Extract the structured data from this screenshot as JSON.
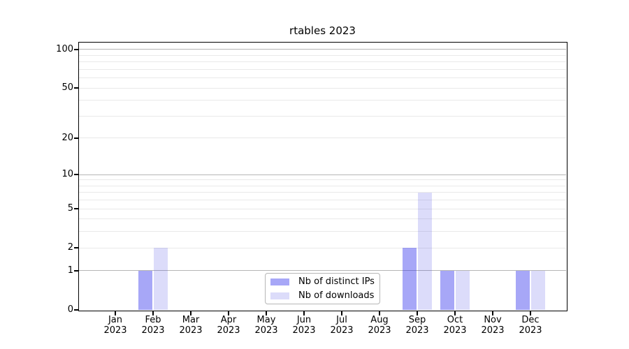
{
  "chart_data": {
    "type": "bar",
    "title": "rtables 2023",
    "categories": [
      "Jan",
      "Feb",
      "Mar",
      "Apr",
      "May",
      "Jun",
      "Jul",
      "Aug",
      "Sep",
      "Oct",
      "Nov",
      "Dec"
    ],
    "x_tick_second_line": "2023",
    "series": [
      {
        "name": "Nb of distinct IPs",
        "color": "rgba(45,45,235,0.42)",
        "values": [
          0,
          1,
          0,
          0,
          0,
          0,
          0,
          0,
          2,
          1,
          0,
          1
        ]
      },
      {
        "name": "Nb of downloads",
        "color": "rgba(70,70,230,0.19)",
        "values": [
          0,
          2,
          0,
          0,
          0,
          0,
          0,
          0,
          7,
          1,
          0,
          1
        ]
      }
    ],
    "xlabel": "",
    "ylabel": "",
    "yscale": "log1p",
    "ylim": [
      0,
      113
    ],
    "yticks": [
      0,
      1,
      2,
      5,
      10,
      20,
      50,
      100
    ],
    "major_gridlines": [
      1,
      10,
      100
    ],
    "minor_gridlines": [
      2,
      3,
      4,
      5,
      6,
      7,
      8,
      9,
      20,
      30,
      40,
      50,
      60,
      70,
      80,
      90
    ],
    "grid": "on",
    "legend_position": "lower center",
    "colors": {
      "major_grid": "#b5b5b5",
      "minor_grid": "#e9e9e9",
      "spine": "#000000"
    }
  }
}
